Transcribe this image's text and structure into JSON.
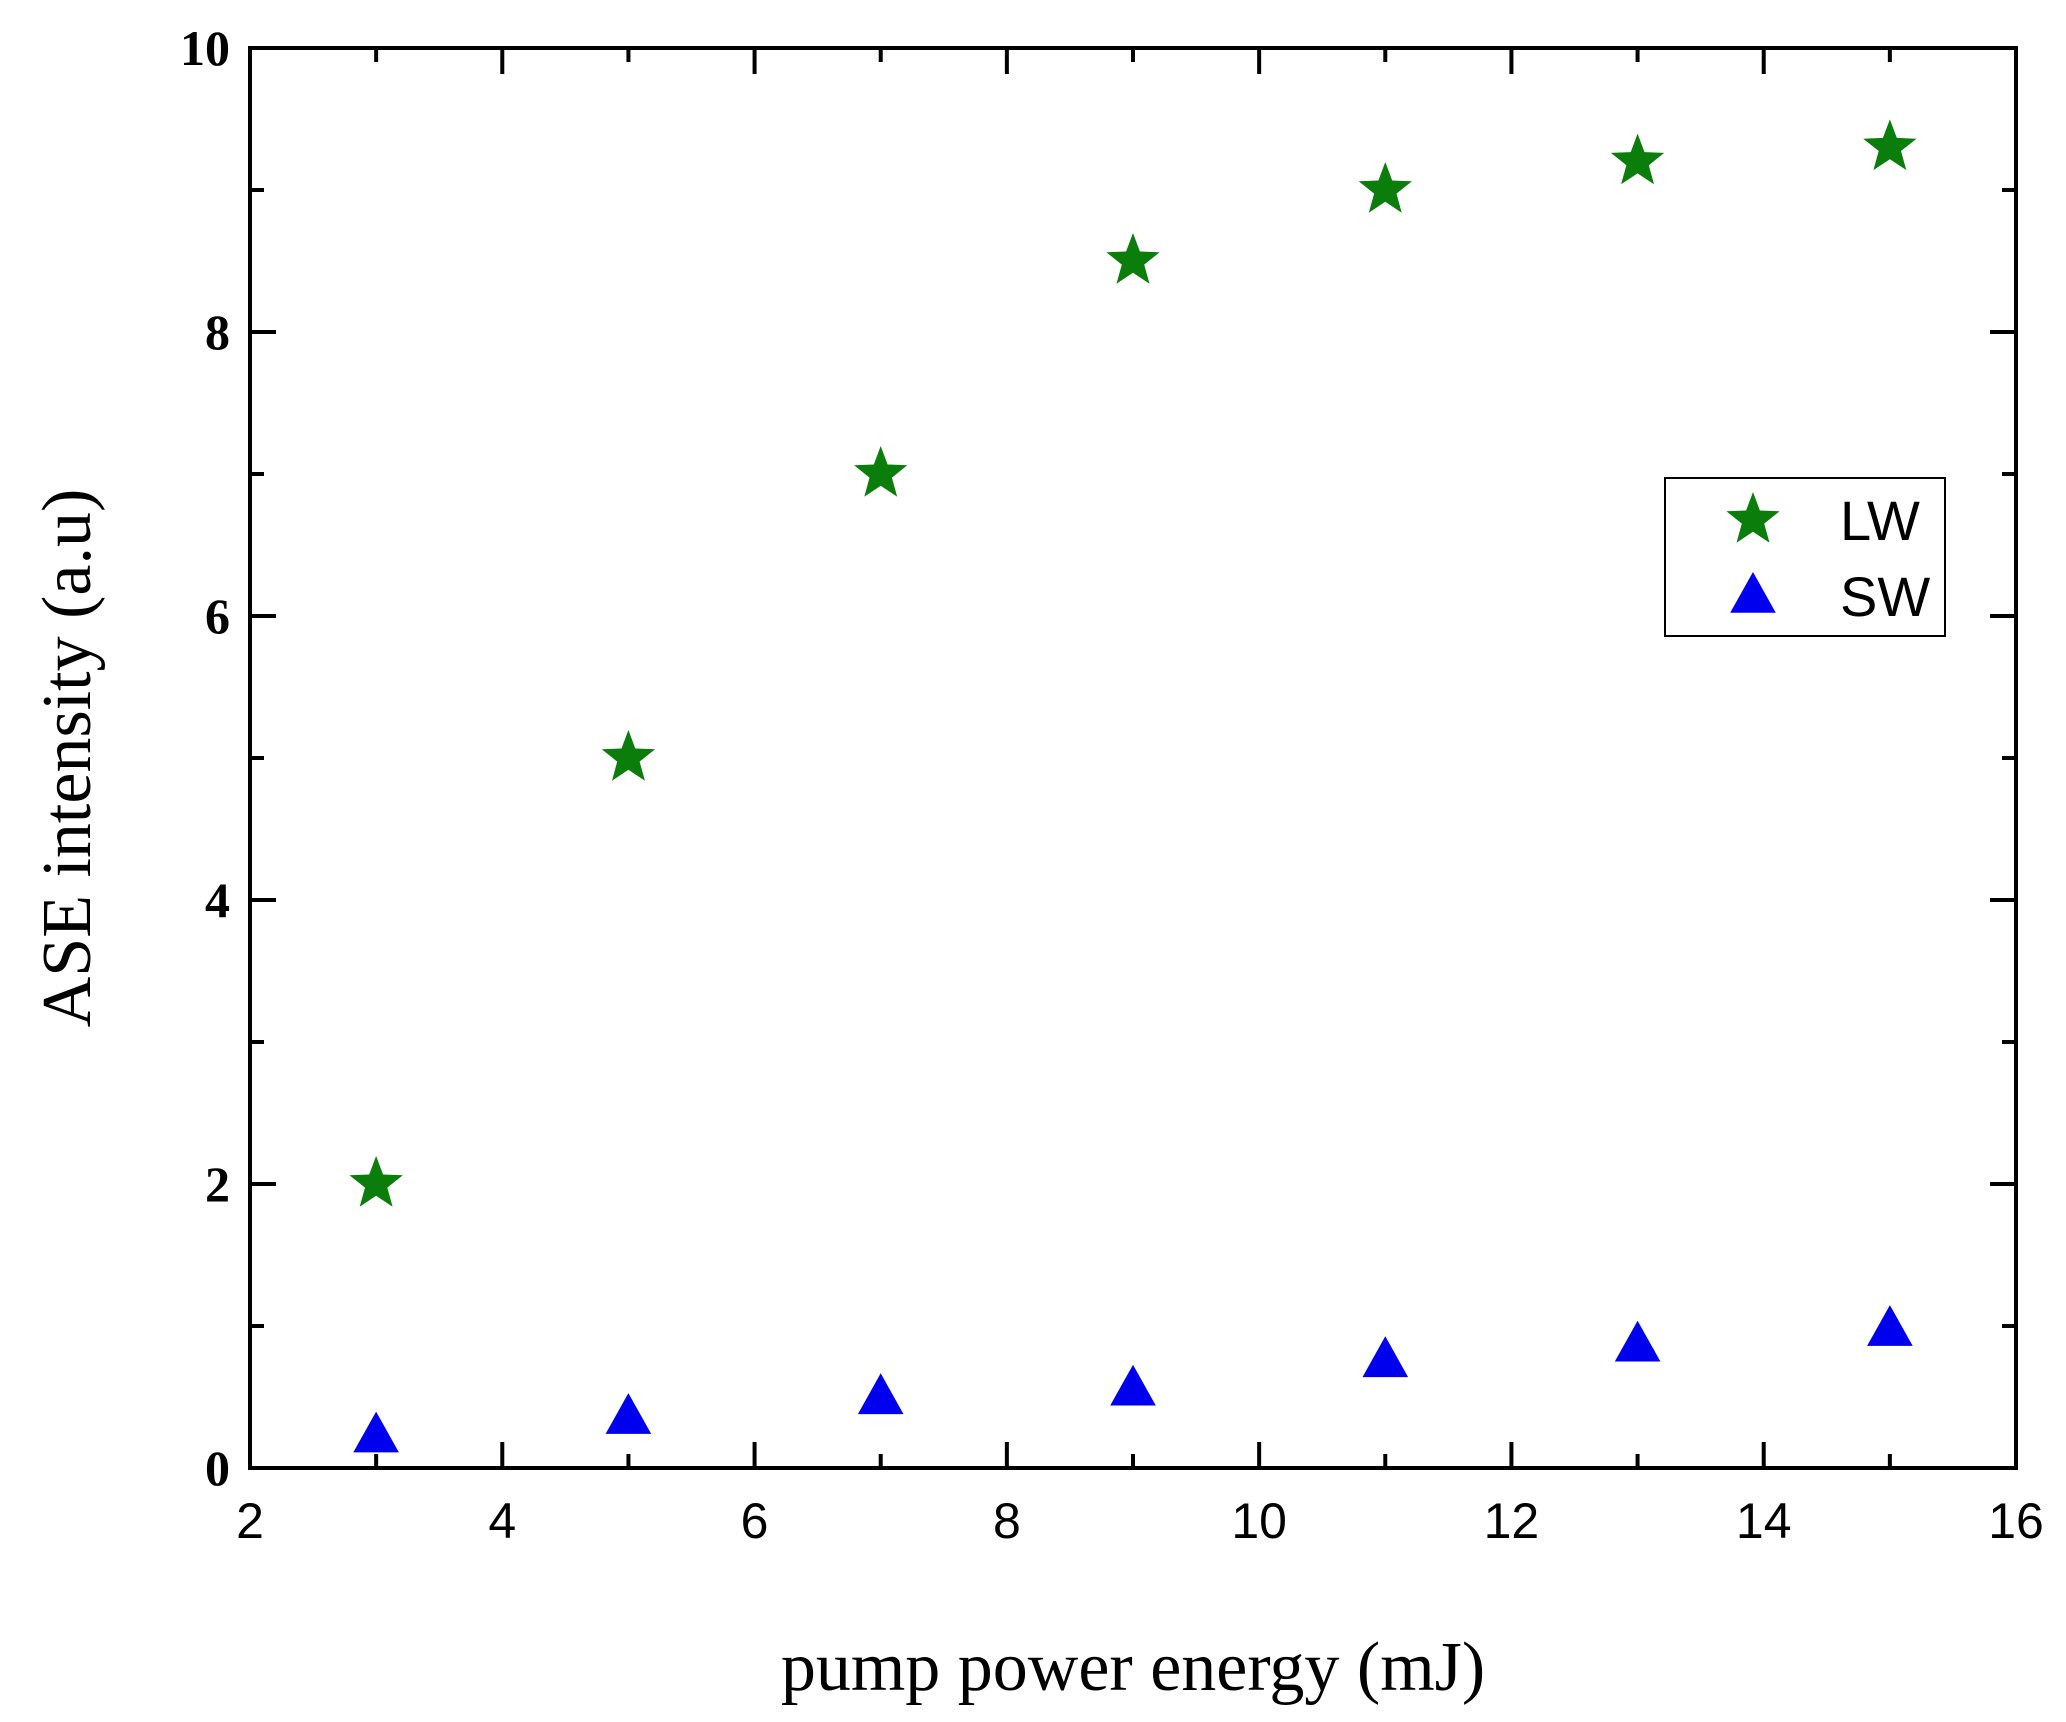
{
  "chart_data": {
    "type": "scatter",
    "title": "",
    "xlabel": "pump power energy (mJ)",
    "ylabel": "ASE intensity (a.u)",
    "xlim": [
      2,
      16
    ],
    "ylim": [
      0,
      10
    ],
    "x_ticks": [
      2,
      4,
      6,
      8,
      10,
      12,
      14,
      16
    ],
    "y_ticks": [
      0,
      2,
      4,
      6,
      8,
      10
    ],
    "grid": false,
    "legend_position": "right",
    "series": [
      {
        "name": "LW",
        "marker": "star",
        "color": "#0a7d0a",
        "x": [
          3,
          5,
          7,
          9,
          11,
          13,
          15
        ],
        "y": [
          2.0,
          5.0,
          7.0,
          8.5,
          9.0,
          9.2,
          9.3
        ]
      },
      {
        "name": "SW",
        "marker": "triangle",
        "color": "#0000ee",
        "x": [
          3,
          5,
          7,
          9,
          11,
          13,
          15
        ],
        "y": [
          0.2,
          0.33,
          0.47,
          0.53,
          0.73,
          0.84,
          0.95
        ]
      }
    ]
  }
}
